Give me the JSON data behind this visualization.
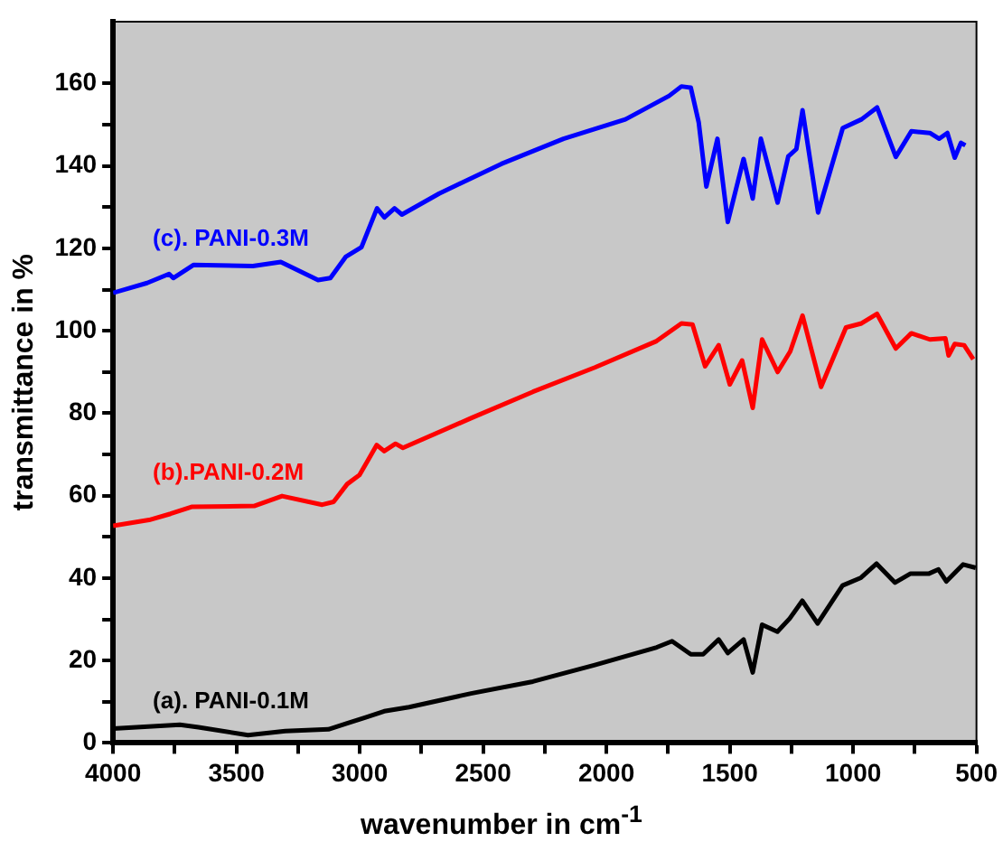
{
  "chart_data": {
    "type": "line",
    "xlabel": "wavenumber in cm$^{-1}$",
    "ylabel": "transmittance in %",
    "xlim": [
      4000,
      500
    ],
    "ylim": [
      0,
      175
    ],
    "xticks": [
      4000,
      {
        "value": 3750,
        "label": null
      },
      3500,
      {
        "value": 3250,
        "label": null
      },
      3000,
      {
        "value": 2750,
        "label": null
      },
      2500,
      {
        "value": 2250,
        "label": null
      },
      2000,
      {
        "value": 1750,
        "label": null
      },
      1500,
      {
        "value": 1250,
        "label": null
      },
      1000,
      {
        "value": 750,
        "label": null
      },
      500
    ],
    "yticks": [
      0,
      {
        "value": 10,
        "label": null
      },
      20,
      {
        "value": 30,
        "label": null
      },
      40,
      {
        "value": 50,
        "label": null
      },
      60,
      {
        "value": 70,
        "label": null
      },
      80,
      {
        "value": 90,
        "label": null
      },
      100,
      {
        "value": 110,
        "label": null
      },
      120,
      {
        "value": 130,
        "label": null
      },
      140,
      {
        "value": 150,
        "label": null
      },
      160
    ],
    "grid": false,
    "legend": false,
    "marker": "none",
    "line_style": "solid",
    "series": [
      {
        "name": "(a). PANI-0.1M",
        "color": "#000000",
        "x": [
          4000,
          3729,
          3654,
          3453,
          3302,
          3127,
          3051,
          2976,
          2901,
          2800,
          2549,
          2298,
          2047,
          1796,
          1734,
          1658,
          1608,
          1545,
          1508,
          1444,
          1407,
          1369,
          1307,
          1257,
          1206,
          1144,
          1043,
          968,
          905,
          830,
          767,
          692,
          654,
          622,
          554,
          503
        ],
        "values": [
          3.5,
          4.4,
          3.8,
          1.9,
          2.9,
          3.3,
          4.8,
          6.2,
          7.7,
          8.7,
          12,
          14.9,
          18.9,
          23.2,
          24.7,
          21.5,
          21.5,
          25.1,
          21.8,
          25.1,
          17.1,
          28.7,
          27,
          30.2,
          34.5,
          29,
          38.2,
          40.1,
          43.5,
          38.9,
          41.1,
          41.1,
          42.1,
          39.2,
          43.3,
          42.5
        ]
      },
      {
        "name": "(b).PANI-0.2M",
        "color": "#ff0000",
        "x": [
          4000,
          3854,
          3767,
          3679,
          3428,
          3315,
          3152,
          3106,
          3051,
          3001,
          2931,
          2901,
          2855,
          2825,
          2549,
          2298,
          2047,
          1797,
          1696,
          1651,
          1600,
          1545,
          1500,
          1450,
          1407,
          1369,
          1306,
          1255,
          1205,
          1130,
          1029,
          966,
          903,
          827,
          764,
          689,
          626,
          613,
          588,
          550,
          513
        ],
        "values": [
          52.7,
          54.1,
          55.6,
          57.3,
          57.5,
          59.9,
          57.8,
          58.5,
          62.8,
          65,
          72.3,
          70.8,
          72.6,
          71.6,
          78.8,
          85.2,
          91.1,
          97.5,
          101.8,
          101.5,
          91.4,
          96.5,
          87,
          92.8,
          81.3,
          97.9,
          90,
          95,
          103.7,
          86.4,
          100.8,
          101.8,
          104.1,
          95.7,
          99.4,
          97.9,
          98.2,
          94,
          96.8,
          96.5,
          93.1
        ]
      },
      {
        "name": "(c). PANI-0.3M",
        "color": "#0000ff",
        "x": [
          4000,
          3862,
          3773,
          3756,
          3673,
          3433,
          3320,
          3169,
          3119,
          3056,
          2993,
          2930,
          2900,
          2859,
          2829,
          2678,
          2426,
          2174,
          1923,
          1746,
          1696,
          1658,
          1626,
          1595,
          1550,
          1508,
          1444,
          1407,
          1374,
          1306,
          1263,
          1230,
          1205,
          1142,
          1042,
          966,
          903,
          827,
          764,
          689,
          651,
          618,
          588,
          563,
          545
        ],
        "values": [
          109.2,
          111.6,
          113.8,
          112.8,
          116,
          115.7,
          116.7,
          112.3,
          112.8,
          118,
          120.3,
          129.7,
          127.5,
          129.7,
          128.2,
          133.3,
          140.5,
          146.6,
          151.3,
          157,
          159.3,
          159,
          150.6,
          135,
          146.6,
          126.4,
          141.7,
          132.1,
          146.6,
          131.1,
          142.3,
          144.1,
          153.5,
          128.7,
          149.2,
          151.3,
          154.2,
          142.2,
          148.4,
          148,
          146.6,
          148,
          142,
          145.6,
          145
        ]
      }
    ]
  }
}
